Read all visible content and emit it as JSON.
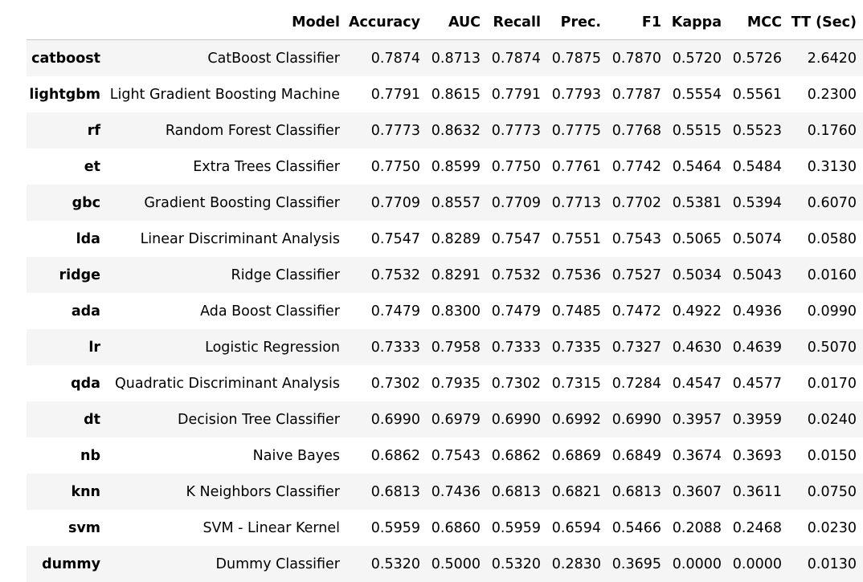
{
  "columns": [
    "",
    "Model",
    "Accuracy",
    "AUC",
    "Recall",
    "Prec.",
    "F1",
    "Kappa",
    "MCC",
    "TT (Sec)"
  ],
  "rows": [
    {
      "id": "catboost",
      "cells": [
        "CatBoost Classifier",
        "0.7874",
        "0.8713",
        "0.7874",
        "0.7875",
        "0.7870",
        "0.5720",
        "0.5726",
        "2.6420"
      ]
    },
    {
      "id": "lightgbm",
      "cells": [
        "Light Gradient Boosting Machine",
        "0.7791",
        "0.8615",
        "0.7791",
        "0.7793",
        "0.7787",
        "0.5554",
        "0.5561",
        "0.2300"
      ]
    },
    {
      "id": "rf",
      "cells": [
        "Random Forest Classifier",
        "0.7773",
        "0.8632",
        "0.7773",
        "0.7775",
        "0.7768",
        "0.5515",
        "0.5523",
        "0.1760"
      ]
    },
    {
      "id": "et",
      "cells": [
        "Extra Trees Classifier",
        "0.7750",
        "0.8599",
        "0.7750",
        "0.7761",
        "0.7742",
        "0.5464",
        "0.5484",
        "0.3130"
      ]
    },
    {
      "id": "gbc",
      "cells": [
        "Gradient Boosting Classifier",
        "0.7709",
        "0.8557",
        "0.7709",
        "0.7713",
        "0.7702",
        "0.5381",
        "0.5394",
        "0.6070"
      ]
    },
    {
      "id": "lda",
      "cells": [
        "Linear Discriminant Analysis",
        "0.7547",
        "0.8289",
        "0.7547",
        "0.7551",
        "0.7543",
        "0.5065",
        "0.5074",
        "0.0580"
      ]
    },
    {
      "id": "ridge",
      "cells": [
        "Ridge Classifier",
        "0.7532",
        "0.8291",
        "0.7532",
        "0.7536",
        "0.7527",
        "0.5034",
        "0.5043",
        "0.0160"
      ]
    },
    {
      "id": "ada",
      "cells": [
        "Ada Boost Classifier",
        "0.7479",
        "0.8300",
        "0.7479",
        "0.7485",
        "0.7472",
        "0.4922",
        "0.4936",
        "0.0990"
      ]
    },
    {
      "id": "lr",
      "cells": [
        "Logistic Regression",
        "0.7333",
        "0.7958",
        "0.7333",
        "0.7335",
        "0.7327",
        "0.4630",
        "0.4639",
        "0.5070"
      ]
    },
    {
      "id": "qda",
      "cells": [
        "Quadratic Discriminant Analysis",
        "0.7302",
        "0.7935",
        "0.7302",
        "0.7315",
        "0.7284",
        "0.4547",
        "0.4577",
        "0.0170"
      ]
    },
    {
      "id": "dt",
      "cells": [
        "Decision Tree Classifier",
        "0.6990",
        "0.6979",
        "0.6990",
        "0.6992",
        "0.6990",
        "0.3957",
        "0.3959",
        "0.0240"
      ]
    },
    {
      "id": "nb",
      "cells": [
        "Naive Bayes",
        "0.6862",
        "0.7543",
        "0.6862",
        "0.6869",
        "0.6849",
        "0.3674",
        "0.3693",
        "0.0150"
      ]
    },
    {
      "id": "knn",
      "cells": [
        "K Neighbors Classifier",
        "0.6813",
        "0.7436",
        "0.6813",
        "0.6821",
        "0.6813",
        "0.3607",
        "0.3611",
        "0.0750"
      ]
    },
    {
      "id": "svm",
      "cells": [
        "SVM - Linear Kernel",
        "0.5959",
        "0.6860",
        "0.5959",
        "0.6594",
        "0.5466",
        "0.2088",
        "0.2468",
        "0.0230"
      ]
    },
    {
      "id": "dummy",
      "cells": [
        "Dummy Classifier",
        "0.5320",
        "0.5000",
        "0.5320",
        "0.2830",
        "0.3695",
        "0.0000",
        "0.0000",
        "0.0130"
      ]
    }
  ]
}
